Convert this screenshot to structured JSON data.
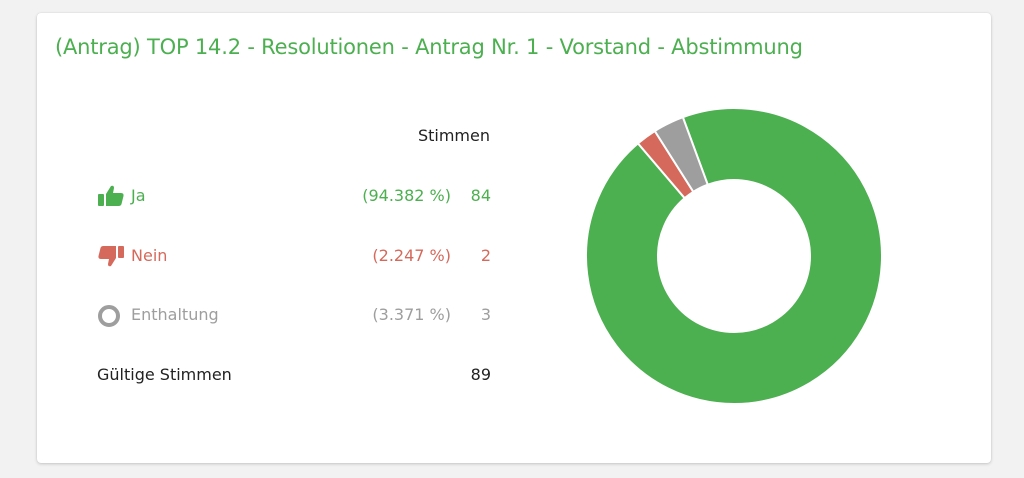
{
  "poll": {
    "title": "(Antrag) TOP 14.2 - Resolutionen - Antrag Nr. 1 - Vorstand - Abstimmung",
    "votes_header": "Stimmen",
    "options": [
      {
        "key": "yes",
        "icon": "thumbs-up-icon",
        "label": "Ja",
        "percent": "(94.382 %)",
        "count": "84",
        "color": "#4caf50"
      },
      {
        "key": "no",
        "icon": "thumbs-down-icon",
        "label": "Nein",
        "percent": "(2.247 %)",
        "count": "2",
        "color": "#d5695b"
      },
      {
        "key": "abstain",
        "icon": "circle-icon",
        "label": "Enthaltung",
        "percent": "(3.371 %)",
        "count": "3",
        "color": "#9e9e9e"
      }
    ],
    "valid_votes_label": "Gültige Stimmen",
    "valid_votes_count": "89"
  },
  "chart_data": {
    "type": "pie",
    "categories": [
      "Ja",
      "Nein",
      "Enthaltung"
    ],
    "values": [
      84,
      2,
      3
    ],
    "colors": [
      "#4caf50",
      "#d5695b",
      "#9e9e9e"
    ],
    "donut": true
  }
}
